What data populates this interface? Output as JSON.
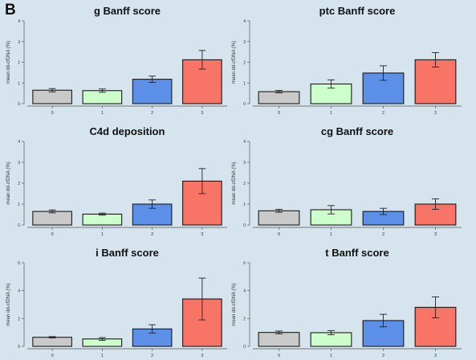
{
  "panel_label": "B",
  "colors": {
    "background": "#d6e4ee",
    "bar_outline": "#1a1a1a",
    "categories": [
      "#c9c9c9",
      "#ccffcc",
      "#5b8fe8",
      "#f77466"
    ]
  },
  "chart_data": [
    {
      "type": "bar",
      "title": "g Banff score",
      "ylabel": "mean dd-cfDNA (%)",
      "categories": [
        "0",
        "1",
        "2",
        "3"
      ],
      "values": [
        0.65,
        0.63,
        1.18,
        2.12
      ],
      "error": [
        0.08,
        0.08,
        0.15,
        0.45
      ],
      "ylim": [
        0,
        4
      ],
      "yticks": [
        0,
        1,
        2,
        3,
        4
      ]
    },
    {
      "type": "bar",
      "title": "ptc Banff score",
      "ylabel": "mean dd-cfDNA (%)",
      "categories": [
        "0",
        "1",
        "2",
        "3"
      ],
      "values": [
        0.58,
        0.95,
        1.48,
        2.12
      ],
      "error": [
        0.06,
        0.2,
        0.35,
        0.35
      ],
      "ylim": [
        0,
        4
      ],
      "yticks": [
        0,
        1,
        2,
        3,
        4
      ]
    },
    {
      "type": "bar",
      "title": "C4d deposition",
      "ylabel": "mean dd-cfDNA (%)",
      "categories": [
        "0",
        "1",
        "2",
        "3"
      ],
      "values": [
        0.65,
        0.52,
        1.0,
        2.1
      ],
      "error": [
        0.07,
        0.05,
        0.2,
        0.6
      ],
      "ylim": [
        0,
        4
      ],
      "yticks": [
        0,
        1,
        2,
        3,
        4
      ]
    },
    {
      "type": "bar",
      "title": "cg Banff score",
      "ylabel": "mean dd-cfDNA (%)",
      "categories": [
        "0",
        "1",
        "2",
        "3"
      ],
      "values": [
        0.68,
        0.73,
        0.65,
        1.0
      ],
      "error": [
        0.07,
        0.2,
        0.15,
        0.25
      ],
      "ylim": [
        0,
        4
      ],
      "yticks": [
        0,
        1,
        2,
        3,
        4
      ]
    },
    {
      "type": "bar",
      "title": "i Banff score",
      "ylabel": "mean dd-cfDNA (%)",
      "categories": [
        "0",
        "1",
        "2",
        "3"
      ],
      "values": [
        0.65,
        0.53,
        1.25,
        3.4
      ],
      "error": [
        0.05,
        0.1,
        0.3,
        1.5
      ],
      "ylim": [
        0,
        6
      ],
      "yticks": [
        0,
        2,
        4,
        6
      ]
    },
    {
      "type": "bar",
      "title": "t Banff score",
      "ylabel": "mean dd-cfDNA (%)",
      "categories": [
        "0",
        "1",
        "2",
        "3"
      ],
      "values": [
        1.0,
        0.98,
        1.85,
        2.8
      ],
      "error": [
        0.1,
        0.15,
        0.45,
        0.75
      ],
      "ylim": [
        0,
        6
      ],
      "yticks": [
        0,
        2,
        4,
        6
      ]
    }
  ]
}
